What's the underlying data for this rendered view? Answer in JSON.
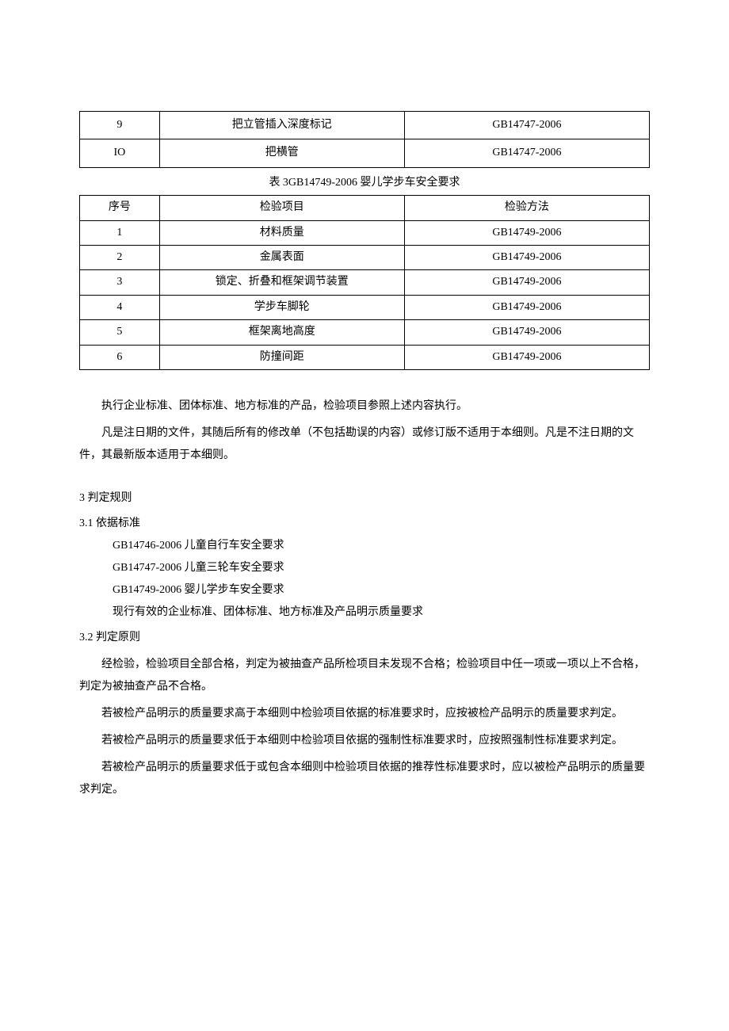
{
  "table1": {
    "rows": [
      {
        "seq": "9",
        "item": "把立管插入深度标记",
        "method": "GB14747-2006"
      },
      {
        "seq": "IO",
        "item": "把横管",
        "method": "GB14747-2006"
      }
    ]
  },
  "table2_caption": "表 3GB14749-2006 婴儿学步车安全要求",
  "table2": {
    "headers": {
      "seq": "序号",
      "item": "检验项目",
      "method": "检验方法"
    },
    "rows": [
      {
        "seq": "1",
        "item": "材料质量",
        "method": "GB14749-2006"
      },
      {
        "seq": "2",
        "item": "金属表面",
        "method": "GB14749-2006"
      },
      {
        "seq": "3",
        "item": "锁定、折叠和框架调节装置",
        "method": "GB14749-2006"
      },
      {
        "seq": "4",
        "item": "学步车脚轮",
        "method": "GB14749-2006"
      },
      {
        "seq": "5",
        "item": "框架离地高度",
        "method": "GB14749-2006"
      },
      {
        "seq": "6",
        "item": "防撞间距",
        "method": "GB14749-2006"
      }
    ]
  },
  "paras": {
    "p1": "执行企业标准、团体标准、地方标准的产品，检验项目参照上述内容执行。",
    "p2": "凡是注日期的文件，其随后所有的修改单（不包括勘误的内容）或修订版不适用于本细则。凡是不注日期的文件，其最新版本适用于本细则。"
  },
  "section3": {
    "title": "3 判定规则",
    "s31": {
      "title": "3.1  依据标准",
      "lines": [
        "GB14746-2006 儿童自行车安全要求",
        "GB14747-2006 儿童三轮车安全要求",
        "GB14749-2006 婴儿学步车安全要求",
        "现行有效的企业标准、团体标准、地方标准及产品明示质量要求"
      ]
    },
    "s32": {
      "title": "3.2  判定原则",
      "p1": "经检验，检验项目全部合格，判定为被抽查产品所检项目未发现不合格；检验项目中任一项或一项以上不合格，判定为被抽查产品不合格。",
      "p2": "若被检产品明示的质量要求高于本细则中检验项目依据的标准要求时，应按被检产品明示的质量要求判定。",
      "p3": "若被检产品明示的质量要求低于本细则中检验项目依据的强制性标准要求时，应按照强制性标准要求判定。",
      "p4": "若被检产品明示的质量要求低于或包含本细则中检验项目依据的推荐性标准要求时，应以被检产品明示的质量要求判定。"
    }
  }
}
